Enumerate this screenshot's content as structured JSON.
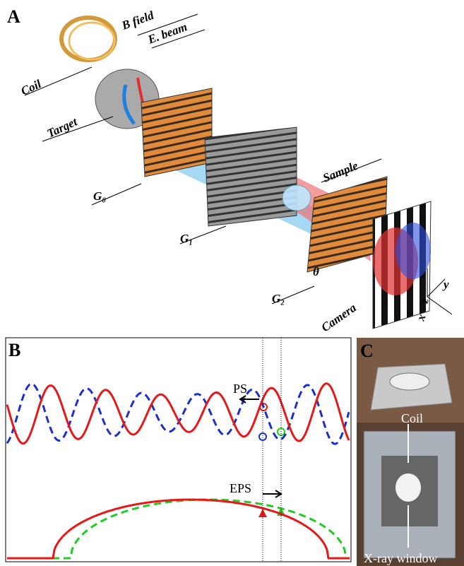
{
  "panel_a": {
    "label": "A",
    "b_field": "B field",
    "e_beam": "E. beam",
    "coil": "Coil",
    "target": "Target",
    "g0": "G₀",
    "g1": "G₁",
    "g2": "G₂",
    "sample": "Sample",
    "theta": "θ",
    "camera": "Camera",
    "axis_x": "x",
    "axis_y": "y",
    "axis_z": "z"
  },
  "panel_b": {
    "label": "B",
    "ps": "PS",
    "eps": "EPS"
  },
  "panel_c": {
    "label": "C",
    "coil": "Coil",
    "xray_window": "X-ray window"
  }
}
